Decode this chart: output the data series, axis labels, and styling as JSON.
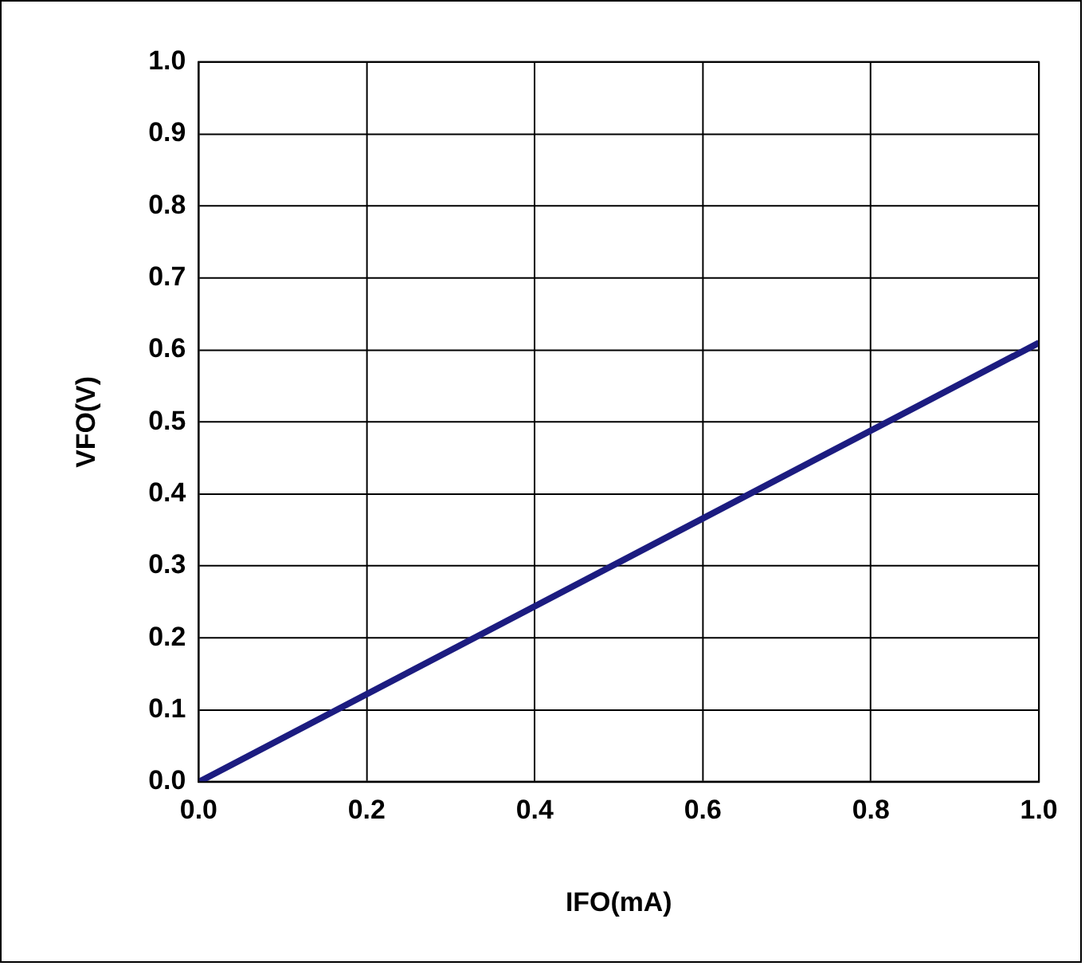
{
  "chart_data": {
    "type": "line",
    "xlabel": "IFO(mA)",
    "ylabel": "VFO(V)",
    "x": [
      0,
      0.5,
      1.0
    ],
    "series": [
      {
        "color": "#1c1c80",
        "values": [
          0,
          0.305,
          0.61
        ]
      }
    ],
    "xlim": [
      0,
      1.0
    ],
    "xticks": [
      {
        "value": 0,
        "label": "0.0"
      },
      0.2,
      0.4,
      0.6,
      0.8,
      {
        "value": 1,
        "label": "1.0"
      }
    ],
    "ylim": [
      0,
      1.0
    ],
    "yticks": [
      {
        "value": 0,
        "label": "0.0"
      },
      0.1,
      0.2,
      0.3,
      0.4,
      0.5,
      0.6,
      0.7,
      0.8,
      0.9,
      {
        "value": 1,
        "label": "1.0"
      }
    ],
    "grid": true,
    "legend": false,
    "marker": "none",
    "line_style": "solid"
  }
}
